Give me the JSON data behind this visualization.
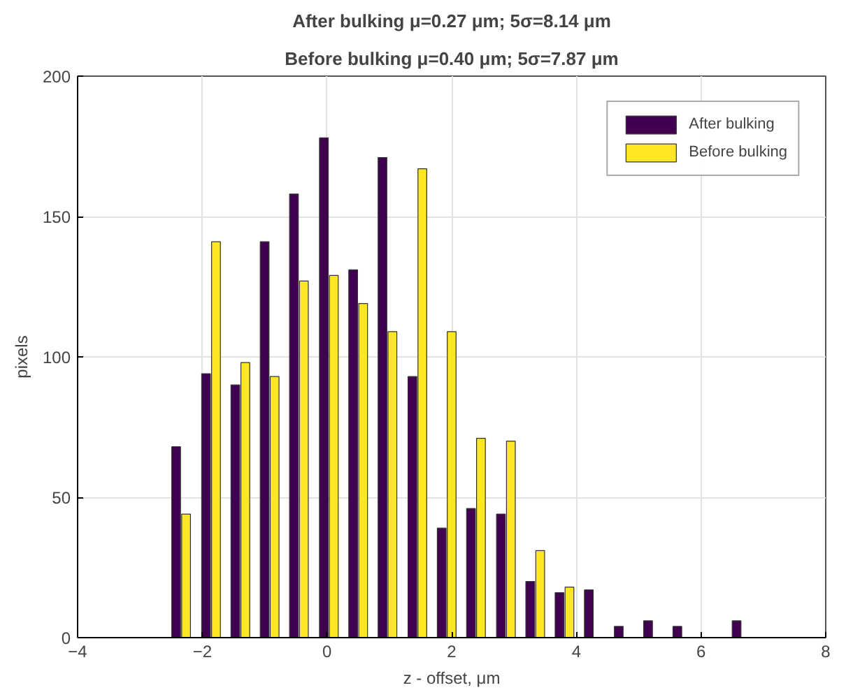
{
  "chart_data": {
    "type": "bar",
    "title": "After bulking μ=0.27 μm; 5σ=8.14 μm",
    "subtitle": "Before bulking μ=0.40 μm; 5σ=7.87 μm",
    "xlabel": "z - offset, μm",
    "ylabel": "pixels",
    "x": [
      -2.34,
      -1.86,
      -1.39,
      -0.92,
      -0.45,
      0.03,
      0.5,
      0.97,
      1.45,
      1.92,
      2.39,
      2.87,
      3.34,
      3.81,
      4.28,
      4.76,
      5.23,
      5.7,
      6.18,
      6.65
    ],
    "series": [
      {
        "name": "After bulking",
        "color": "#3f0150",
        "values": [
          68,
          94,
          90,
          141,
          158,
          178,
          131,
          171,
          93,
          39,
          46,
          44,
          20,
          16,
          17,
          4,
          6,
          4,
          null,
          6
        ]
      },
      {
        "name": "Before bulking",
        "color": "#fde725",
        "values": [
          44,
          141,
          98,
          93,
          127,
          129,
          119,
          109,
          167,
          109,
          71,
          70,
          31,
          18,
          null,
          null,
          null,
          null,
          null,
          null
        ]
      }
    ],
    "xlim": [
      -4,
      8
    ],
    "xticks": [
      -4,
      -2,
      0,
      2,
      4,
      6,
      8
    ],
    "ylim": [
      0,
      200
    ],
    "yticks": [
      0,
      50,
      100,
      150,
      200
    ],
    "grid": true,
    "legend": "top right"
  }
}
